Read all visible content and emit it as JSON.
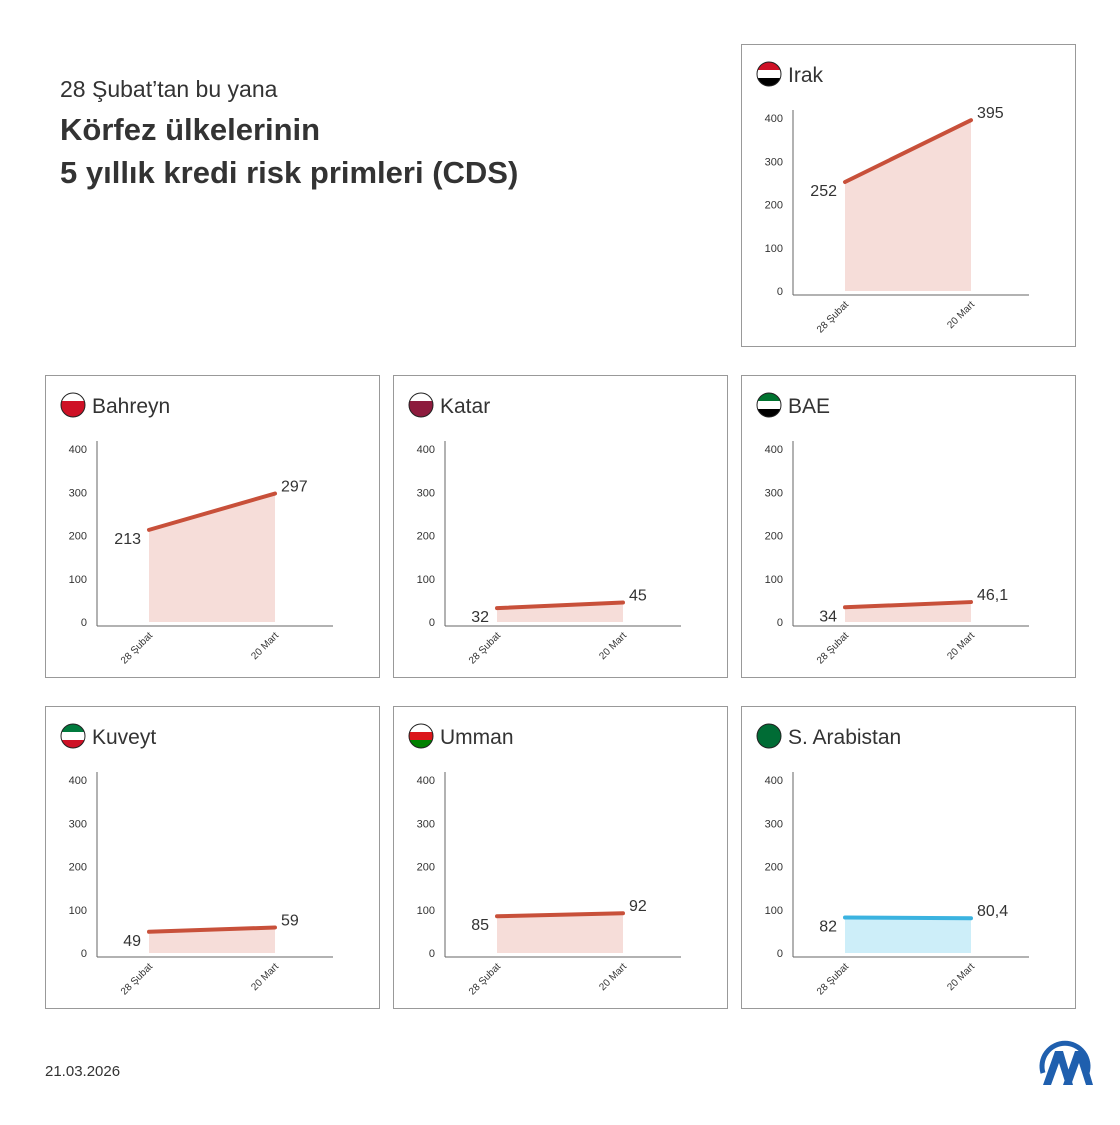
{
  "header": {
    "subtitle": "28 Şubat’tan bu yana",
    "title": [
      "Körfez ülkelerinin",
      "5 yıllık kredi risk primleri (CDS)"
    ]
  },
  "footer": {
    "date": "21.03.2026"
  },
  "chart_data": [
    {
      "type": "line",
      "title": "Irak",
      "categories": [
        "28 Şubat",
        "20 Mart"
      ],
      "series": [
        {
          "color": "#c8503a",
          "area_color": "#f6ddd9",
          "values": [
            252,
            395
          ]
        }
      ],
      "ylim": [
        0,
        400
      ],
      "yticks": [
        0,
        100,
        200,
        300,
        400
      ]
    },
    {
      "type": "line",
      "title": "Bahreyn",
      "categories": [
        "28 Şubat",
        "20 Mart"
      ],
      "series": [
        {
          "color": "#c8503a",
          "area_color": "#f6ddd9",
          "values": [
            213,
            297
          ]
        }
      ],
      "ylim": [
        0,
        400
      ],
      "yticks": [
        0,
        100,
        200,
        300,
        400
      ]
    },
    {
      "type": "line",
      "title": "Katar",
      "categories": [
        "28 Şubat",
        "20 Mart"
      ],
      "series": [
        {
          "color": "#c8503a",
          "area_color": "#f6ddd9",
          "values": [
            32,
            45
          ]
        }
      ],
      "ylim": [
        0,
        400
      ],
      "yticks": [
        0,
        100,
        200,
        300,
        400
      ]
    },
    {
      "type": "line",
      "title": "BAE",
      "categories": [
        "28 Şubat",
        "20 Mart"
      ],
      "series": [
        {
          "color": "#c8503a",
          "area_color": "#f6ddd9",
          "values": [
            34,
            46.1
          ],
          "value_labels": [
            "34",
            "46,1"
          ]
        }
      ],
      "ylim": [
        0,
        400
      ],
      "yticks": [
        0,
        100,
        200,
        300,
        400
      ]
    },
    {
      "type": "line",
      "title": "Kuveyt",
      "categories": [
        "28 Şubat",
        "20 Mart"
      ],
      "series": [
        {
          "color": "#c8503a",
          "area_color": "#f6ddd9",
          "values": [
            49,
            59
          ]
        }
      ],
      "ylim": [
        0,
        400
      ],
      "yticks": [
        0,
        100,
        200,
        300,
        400
      ]
    },
    {
      "type": "line",
      "title": "Umman",
      "categories": [
        "28 Şubat",
        "20 Mart"
      ],
      "series": [
        {
          "color": "#c8503a",
          "area_color": "#f6ddd9",
          "values": [
            85,
            92
          ]
        }
      ],
      "ylim": [
        0,
        400
      ],
      "yticks": [
        0,
        100,
        200,
        300,
        400
      ]
    },
    {
      "type": "line",
      "title": "S. Arabistan",
      "categories": [
        "28 Şubat",
        "20 Mart"
      ],
      "series": [
        {
          "color": "#3bb3e0",
          "area_color": "#cdeef9",
          "values": [
            82,
            80.4
          ],
          "value_labels": [
            "82",
            "80,4"
          ]
        }
      ],
      "ylim": [
        0,
        400
      ],
      "yticks": [
        0,
        100,
        200,
        300,
        400
      ]
    }
  ]
}
